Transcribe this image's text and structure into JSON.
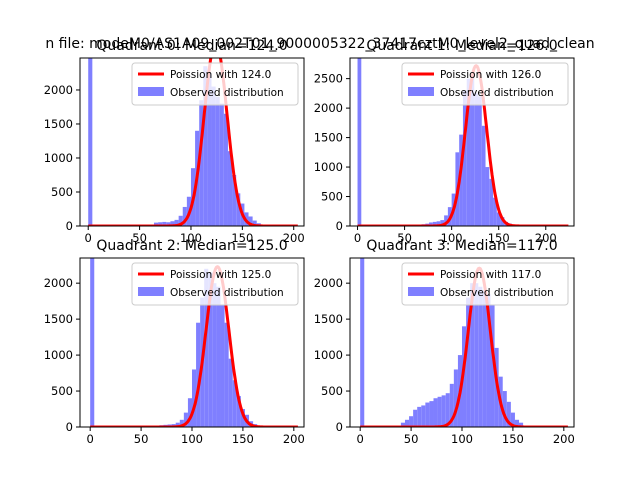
{
  "figure_title": "n file: modeM0/AS1A09_002T01_9000005322_37417cztM0_level2_quad_clean",
  "colors": {
    "histogram": "#7f7fff",
    "poisson": "#ff0000",
    "axes": "#000000",
    "background": "#ffffff"
  },
  "chart_data": [
    {
      "type": "bar",
      "title": "Quadrant 0: Median=124.0",
      "xlim": [
        -8,
        210
      ],
      "ylim": [
        0,
        2470
      ],
      "xticks": [
        0,
        50,
        100,
        150,
        200
      ],
      "yticks": [
        0,
        500,
        1000,
        1500,
        2000
      ],
      "bin_width": 4,
      "median": 124.0,
      "poisson_label": "Poission with 124.0",
      "hist_label": "Observed distribution",
      "legend_position": "upper right",
      "histogram": [
        [
          0,
          2470
        ],
        [
          64,
          50
        ],
        [
          68,
          55
        ],
        [
          72,
          60
        ],
        [
          76,
          55
        ],
        [
          80,
          70
        ],
        [
          84,
          90
        ],
        [
          88,
          150
        ],
        [
          92,
          280
        ],
        [
          96,
          430
        ],
        [
          100,
          850
        ],
        [
          104,
          1400
        ],
        [
          108,
          1850
        ],
        [
          112,
          2350
        ],
        [
          116,
          2250
        ],
        [
          120,
          2050
        ],
        [
          124,
          1900
        ],
        [
          128,
          1800
        ],
        [
          132,
          1650
        ],
        [
          136,
          1100
        ],
        [
          140,
          750
        ],
        [
          144,
          480
        ],
        [
          148,
          330
        ],
        [
          152,
          200
        ],
        [
          156,
          140
        ],
        [
          160,
          80
        ],
        [
          164,
          40
        ]
      ],
      "poisson_peak": 2700
    },
    {
      "type": "bar",
      "title": "Quadrant 1: Median=126.0",
      "xlim": [
        -8,
        230
      ],
      "ylim": [
        0,
        2850
      ],
      "xticks": [
        0,
        50,
        100,
        150,
        200
      ],
      "yticks": [
        0,
        500,
        1000,
        1500,
        2000,
        2500
      ],
      "bin_width": 4,
      "median": 126.0,
      "poisson_label": "Poission with 126.0",
      "hist_label": "Observed distribution",
      "legend_position": "upper right",
      "histogram": [
        [
          0,
          2850
        ],
        [
          68,
          30
        ],
        [
          72,
          40
        ],
        [
          76,
          60
        ],
        [
          80,
          70
        ],
        [
          84,
          80
        ],
        [
          88,
          100
        ],
        [
          92,
          180
        ],
        [
          96,
          320
        ],
        [
          100,
          550
        ],
        [
          104,
          1250
        ],
        [
          108,
          1550
        ],
        [
          112,
          2300
        ],
        [
          116,
          2500
        ],
        [
          120,
          2550
        ],
        [
          124,
          2250
        ],
        [
          128,
          2200
        ],
        [
          132,
          1700
        ],
        [
          136,
          1000
        ],
        [
          140,
          800
        ],
        [
          144,
          480
        ],
        [
          148,
          230
        ],
        [
          152,
          150
        ],
        [
          156,
          70
        ],
        [
          160,
          40
        ]
      ],
      "poisson_peak": 2720
    },
    {
      "type": "bar",
      "title": "Quadrant 2: Median=125.0",
      "xlim": [
        -10,
        210
      ],
      "ylim": [
        0,
        2350
      ],
      "xticks": [
        0,
        50,
        100,
        150,
        200
      ],
      "yticks": [
        0,
        500,
        1000,
        1500,
        2000
      ],
      "bin_width": 4,
      "median": 125.0,
      "poisson_label": "Poission with 125.0",
      "hist_label": "Observed distribution",
      "legend_position": "upper right",
      "histogram": [
        [
          0,
          2350
        ],
        [
          64,
          20
        ],
        [
          68,
          25
        ],
        [
          72,
          30
        ],
        [
          76,
          35
        ],
        [
          80,
          40
        ],
        [
          84,
          60
        ],
        [
          88,
          100
        ],
        [
          92,
          200
        ],
        [
          96,
          400
        ],
        [
          100,
          800
        ],
        [
          104,
          1450
        ],
        [
          108,
          1800
        ],
        [
          112,
          2200
        ],
        [
          116,
          2150
        ],
        [
          120,
          2000
        ],
        [
          124,
          1950
        ],
        [
          128,
          1700
        ],
        [
          132,
          1450
        ],
        [
          136,
          950
        ],
        [
          140,
          650
        ],
        [
          144,
          430
        ],
        [
          148,
          250
        ],
        [
          152,
          170
        ],
        [
          156,
          80
        ],
        [
          160,
          40
        ]
      ],
      "poisson_peak": 2230
    },
    {
      "type": "bar",
      "title": "Quadrant 3: Median=117.0",
      "xlim": [
        -10,
        210
      ],
      "ylim": [
        0,
        2350
      ],
      "xticks": [
        0,
        50,
        100,
        150,
        200
      ],
      "yticks": [
        0,
        500,
        1000,
        1500,
        2000
      ],
      "bin_width": 4,
      "median": 117.0,
      "poisson_label": "Poission with 117.0",
      "hist_label": "Observed distribution",
      "legend_position": "upper right",
      "histogram": [
        [
          0,
          2350
        ],
        [
          40,
          60
        ],
        [
          44,
          100
        ],
        [
          48,
          150
        ],
        [
          52,
          240
        ],
        [
          56,
          280
        ],
        [
          60,
          300
        ],
        [
          64,
          340
        ],
        [
          68,
          360
        ],
        [
          72,
          400
        ],
        [
          76,
          420
        ],
        [
          80,
          440
        ],
        [
          84,
          470
        ],
        [
          88,
          600
        ],
        [
          92,
          800
        ],
        [
          96,
          1000
        ],
        [
          100,
          1400
        ],
        [
          104,
          1800
        ],
        [
          108,
          2000
        ],
        [
          112,
          2000
        ],
        [
          116,
          1950
        ],
        [
          120,
          1900
        ],
        [
          124,
          1850
        ],
        [
          128,
          1700
        ],
        [
          132,
          1100
        ],
        [
          136,
          700
        ],
        [
          140,
          500
        ],
        [
          144,
          350
        ],
        [
          148,
          200
        ],
        [
          152,
          100
        ],
        [
          156,
          60
        ]
      ],
      "poisson_peak": 2210
    }
  ]
}
